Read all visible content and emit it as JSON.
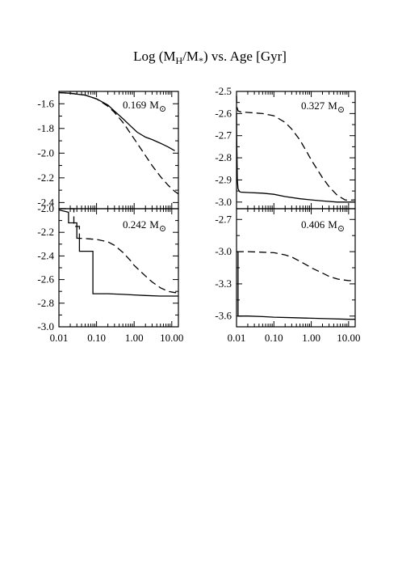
{
  "figure": {
    "title_main": "Log (M",
    "title_sub1": "H",
    "title_mid": "/M",
    "title_sub2": "*",
    "title_tail": ") vs. Age [Gyr]",
    "line_color": "#000000"
  },
  "chart_data": [
    {
      "type": "line",
      "panel": "top-left",
      "mass_value": "0.169",
      "mass_unit_symbol": "M",
      "mass_unit_sub": "⊙",
      "xscale": "log",
      "xlim": [
        0.01,
        15
      ],
      "ylim": [
        -2.45,
        -1.5
      ],
      "xticks": [
        0.01,
        0.1,
        1,
        10
      ],
      "xtick_labels": [],
      "yticks": [
        -1.6,
        -1.8,
        -2.0,
        -2.2,
        -2.4
      ],
      "ytick_labels": [
        "-1.6",
        "-1.8",
        "-2.0",
        "-2.2",
        "-2.4"
      ],
      "series": [
        {
          "style": "solid",
          "x": [
            0.01,
            0.02,
            0.05,
            0.1,
            0.2,
            0.3,
            0.5,
            0.8,
            1.2,
            2.0,
            3.0,
            5.0,
            8.0,
            12.0
          ],
          "y": [
            -1.51,
            -1.515,
            -1.53,
            -1.56,
            -1.61,
            -1.66,
            -1.72,
            -1.78,
            -1.83,
            -1.87,
            -1.89,
            -1.92,
            -1.95,
            -1.98
          ]
        },
        {
          "style": "dashed",
          "x": [
            0.01,
            0.02,
            0.05,
            0.1,
            0.2,
            0.3,
            0.5,
            0.8,
            1.2,
            2.0,
            3.0,
            5.0,
            8.0,
            12.0,
            15.0
          ],
          "y": [
            -1.51,
            -1.515,
            -1.53,
            -1.56,
            -1.62,
            -1.67,
            -1.75,
            -1.84,
            -1.92,
            -2.02,
            -2.1,
            -2.19,
            -2.26,
            -2.31,
            -2.33
          ]
        }
      ]
    },
    {
      "type": "line",
      "panel": "top-right",
      "mass_value": "0.327",
      "mass_unit_symbol": "M",
      "mass_unit_sub": "⊙",
      "xscale": "log",
      "xlim": [
        0.01,
        15
      ],
      "ylim": [
        -3.03,
        -2.5
      ],
      "xticks": [
        0.01,
        0.1,
        1,
        10
      ],
      "xtick_labels": [],
      "yticks": [
        -2.5,
        -2.6,
        -2.7,
        -2.8,
        -2.9,
        -3.0
      ],
      "ytick_labels": [
        "-2.5",
        "-2.6",
        "-2.7",
        "-2.8",
        "-2.9",
        "-3.0"
      ],
      "series": [
        {
          "style": "solid",
          "x": [
            0.01,
            0.0101,
            0.0105,
            0.011,
            0.012,
            0.013,
            0.02,
            0.05,
            0.1,
            0.2,
            0.5,
            1.0,
            2.0,
            5.0,
            10.0,
            15.0
          ],
          "y": [
            -2.6,
            -2.7,
            -2.9,
            -2.94,
            -2.953,
            -2.955,
            -2.957,
            -2.96,
            -2.965,
            -2.975,
            -2.985,
            -2.99,
            -2.995,
            -3.0,
            -3.0,
            -3.0
          ]
        },
        {
          "style": "dashed",
          "x": [
            0.01,
            0.0102,
            0.011,
            0.013,
            0.02,
            0.05,
            0.1,
            0.2,
            0.3,
            0.5,
            0.8,
            1.0,
            2.0,
            3.0,
            5.0,
            8.0,
            10.0,
            15.0
          ],
          "y": [
            -2.52,
            -2.57,
            -2.588,
            -2.593,
            -2.595,
            -2.6,
            -2.61,
            -2.64,
            -2.67,
            -2.72,
            -2.78,
            -2.81,
            -2.89,
            -2.93,
            -2.97,
            -2.99,
            -2.992,
            -2.99
          ]
        }
      ]
    },
    {
      "type": "line",
      "panel": "bottom-left",
      "mass_value": "0.242",
      "mass_unit_symbol": "M",
      "mass_unit_sub": "⊙",
      "xscale": "log",
      "xlim": [
        0.01,
        15
      ],
      "ylim": [
        -3.0,
        -2.0
      ],
      "xticks": [
        0.01,
        0.1,
        1,
        10
      ],
      "xtick_labels": [
        "0.01",
        "0.10",
        "1.00",
        "10.00"
      ],
      "yticks": [
        -2.0,
        -2.2,
        -2.4,
        -2.6,
        -2.8,
        -3.0
      ],
      "ytick_labels": [
        "-2.0",
        "-2.2",
        "-2.4",
        "-2.6",
        "-2.8",
        "-3.0"
      ],
      "series": [
        {
          "style": "solid",
          "x": [
            0.01,
            0.018,
            0.018,
            0.03,
            0.03,
            0.035,
            0.035,
            0.08,
            0.08,
            0.2,
            0.5,
            1.0,
            2.0,
            5.0,
            10.0,
            15.0
          ],
          "y": [
            -2.01,
            -2.03,
            -2.12,
            -2.12,
            -2.25,
            -2.25,
            -2.36,
            -2.36,
            -2.72,
            -2.72,
            -2.725,
            -2.73,
            -2.735,
            -2.74,
            -2.74,
            -2.74
          ]
        },
        {
          "style": "dashed",
          "x": [
            0.01,
            0.025,
            0.025,
            0.035,
            0.035,
            0.06,
            0.1,
            0.2,
            0.3,
            0.5,
            0.8,
            1.0,
            2.0,
            3.0,
            5.0,
            8.0,
            12.0,
            15.0
          ],
          "y": [
            -2.0,
            -2.0,
            -2.15,
            -2.15,
            -2.25,
            -2.255,
            -2.26,
            -2.28,
            -2.31,
            -2.37,
            -2.44,
            -2.48,
            -2.57,
            -2.62,
            -2.67,
            -2.7,
            -2.71,
            -2.71
          ]
        }
      ]
    },
    {
      "type": "line",
      "panel": "bottom-right",
      "mass_value": "0.406",
      "mass_unit_symbol": "M",
      "mass_unit_sub": "⊙",
      "xscale": "log",
      "xlim": [
        0.01,
        15
      ],
      "ylim": [
        -3.7,
        -2.6
      ],
      "xticks": [
        0.01,
        0.1,
        1,
        10
      ],
      "xtick_labels": [
        "0.01",
        "0.10",
        "1.00",
        "10.00"
      ],
      "yticks": [
        -2.7,
        -3.0,
        -3.3,
        -3.6
      ],
      "ytick_labels": [
        "-2.7",
        "-3.0",
        "-3.3",
        "-3.6"
      ],
      "series": [
        {
          "style": "solid",
          "x": [
            0.01,
            0.011,
            0.011,
            0.02,
            0.05,
            0.1,
            0.3,
            1.0,
            3.0,
            10.0,
            15.0
          ],
          "y": [
            -3.0,
            -3.0,
            -3.6,
            -3.6,
            -3.605,
            -3.61,
            -3.615,
            -3.62,
            -3.625,
            -3.63,
            -3.63
          ]
        },
        {
          "style": "dashed",
          "x": [
            0.01,
            0.02,
            0.05,
            0.1,
            0.2,
            0.3,
            0.5,
            0.8,
            1.0,
            2.0,
            3.0,
            5.0,
            8.0,
            10.0,
            15.0
          ],
          "y": [
            -3.0,
            -3.0,
            -3.005,
            -3.01,
            -3.03,
            -3.05,
            -3.09,
            -3.13,
            -3.15,
            -3.2,
            -3.23,
            -3.255,
            -3.265,
            -3.27,
            -3.27
          ]
        }
      ]
    }
  ]
}
